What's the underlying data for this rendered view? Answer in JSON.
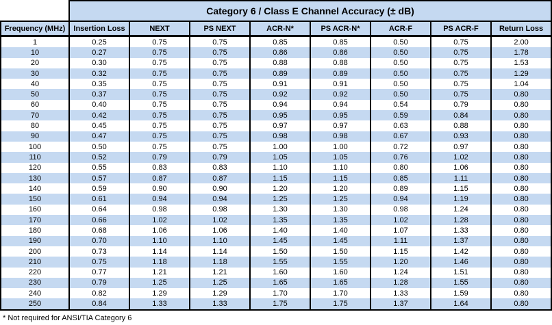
{
  "title": "Category 6 / Class E Channel Accuracy (± dB)",
  "footnote": "* Not required for ANSI/TIA Category 6",
  "colors": {
    "header_fill": "#c5d9f1",
    "alt_row_fill": "#c5d9f1",
    "border": "#000000",
    "text": "#000000"
  },
  "table": {
    "columns": [
      "Frequency (MHz)",
      "Insertion Loss",
      "NEXT",
      "PS NEXT",
      "ACR-N*",
      "PS ACR-N*",
      "ACR-F",
      "PS ACR-F",
      "Return Loss"
    ],
    "rows": [
      [
        "1",
        "0.25",
        "0.75",
        "0.75",
        "0.85",
        "0.85",
        "0.50",
        "0.75",
        "2.00"
      ],
      [
        "10",
        "0.27",
        "0.75",
        "0.75",
        "0.86",
        "0.86",
        "0.50",
        "0.75",
        "1.78"
      ],
      [
        "20",
        "0.30",
        "0.75",
        "0.75",
        "0.88",
        "0.88",
        "0.50",
        "0.75",
        "1.53"
      ],
      [
        "30",
        "0.32",
        "0.75",
        "0.75",
        "0.89",
        "0.89",
        "0.50",
        "0.75",
        "1.29"
      ],
      [
        "40",
        "0.35",
        "0.75",
        "0.75",
        "0.91",
        "0.91",
        "0.50",
        "0.75",
        "1.04"
      ],
      [
        "50",
        "0.37",
        "0.75",
        "0.75",
        "0.92",
        "0.92",
        "0.50",
        "0.75",
        "0.80"
      ],
      [
        "60",
        "0.40",
        "0.75",
        "0.75",
        "0.94",
        "0.94",
        "0.54",
        "0.79",
        "0.80"
      ],
      [
        "70",
        "0.42",
        "0.75",
        "0.75",
        "0.95",
        "0.95",
        "0.59",
        "0.84",
        "0.80"
      ],
      [
        "80",
        "0.45",
        "0.75",
        "0.75",
        "0.97",
        "0.97",
        "0.63",
        "0.88",
        "0.80"
      ],
      [
        "90",
        "0.47",
        "0.75",
        "0.75",
        "0.98",
        "0.98",
        "0.67",
        "0.93",
        "0.80"
      ],
      [
        "100",
        "0.50",
        "0.75",
        "0.75",
        "1.00",
        "1.00",
        "0.72",
        "0.97",
        "0.80"
      ],
      [
        "110",
        "0.52",
        "0.79",
        "0.79",
        "1.05",
        "1.05",
        "0.76",
        "1.02",
        "0.80"
      ],
      [
        "120",
        "0.55",
        "0.83",
        "0.83",
        "1.10",
        "1.10",
        "0.80",
        "1.06",
        "0.80"
      ],
      [
        "130",
        "0.57",
        "0.87",
        "0.87",
        "1.15",
        "1.15",
        "0.85",
        "1.11",
        "0.80"
      ],
      [
        "140",
        "0.59",
        "0.90",
        "0.90",
        "1.20",
        "1.20",
        "0.89",
        "1.15",
        "0.80"
      ],
      [
        "150",
        "0.61",
        "0.94",
        "0.94",
        "1.25",
        "1.25",
        "0.94",
        "1.19",
        "0.80"
      ],
      [
        "160",
        "0.64",
        "0.98",
        "0.98",
        "1.30",
        "1.30",
        "0.98",
        "1.24",
        "0.80"
      ],
      [
        "170",
        "0.66",
        "1.02",
        "1.02",
        "1.35",
        "1.35",
        "1.02",
        "1.28",
        "0.80"
      ],
      [
        "180",
        "0.68",
        "1.06",
        "1.06",
        "1.40",
        "1.40",
        "1.07",
        "1.33",
        "0.80"
      ],
      [
        "190",
        "0.70",
        "1.10",
        "1.10",
        "1.45",
        "1.45",
        "1.11",
        "1.37",
        "0.80"
      ],
      [
        "200",
        "0.73",
        "1.14",
        "1.14",
        "1.50",
        "1.50",
        "1.15",
        "1.42",
        "0.80"
      ],
      [
        "210",
        "0.75",
        "1.18",
        "1.18",
        "1.55",
        "1.55",
        "1.20",
        "1.46",
        "0.80"
      ],
      [
        "220",
        "0.77",
        "1.21",
        "1.21",
        "1.60",
        "1.60",
        "1.24",
        "1.51",
        "0.80"
      ],
      [
        "230",
        "0.79",
        "1.25",
        "1.25",
        "1.65",
        "1.65",
        "1.28",
        "1.55",
        "0.80"
      ],
      [
        "240",
        "0.82",
        "1.29",
        "1.29",
        "1.70",
        "1.70",
        "1.33",
        "1.59",
        "0.80"
      ],
      [
        "250",
        "0.84",
        "1.33",
        "1.33",
        "1.75",
        "1.75",
        "1.37",
        "1.64",
        "0.80"
      ]
    ]
  }
}
